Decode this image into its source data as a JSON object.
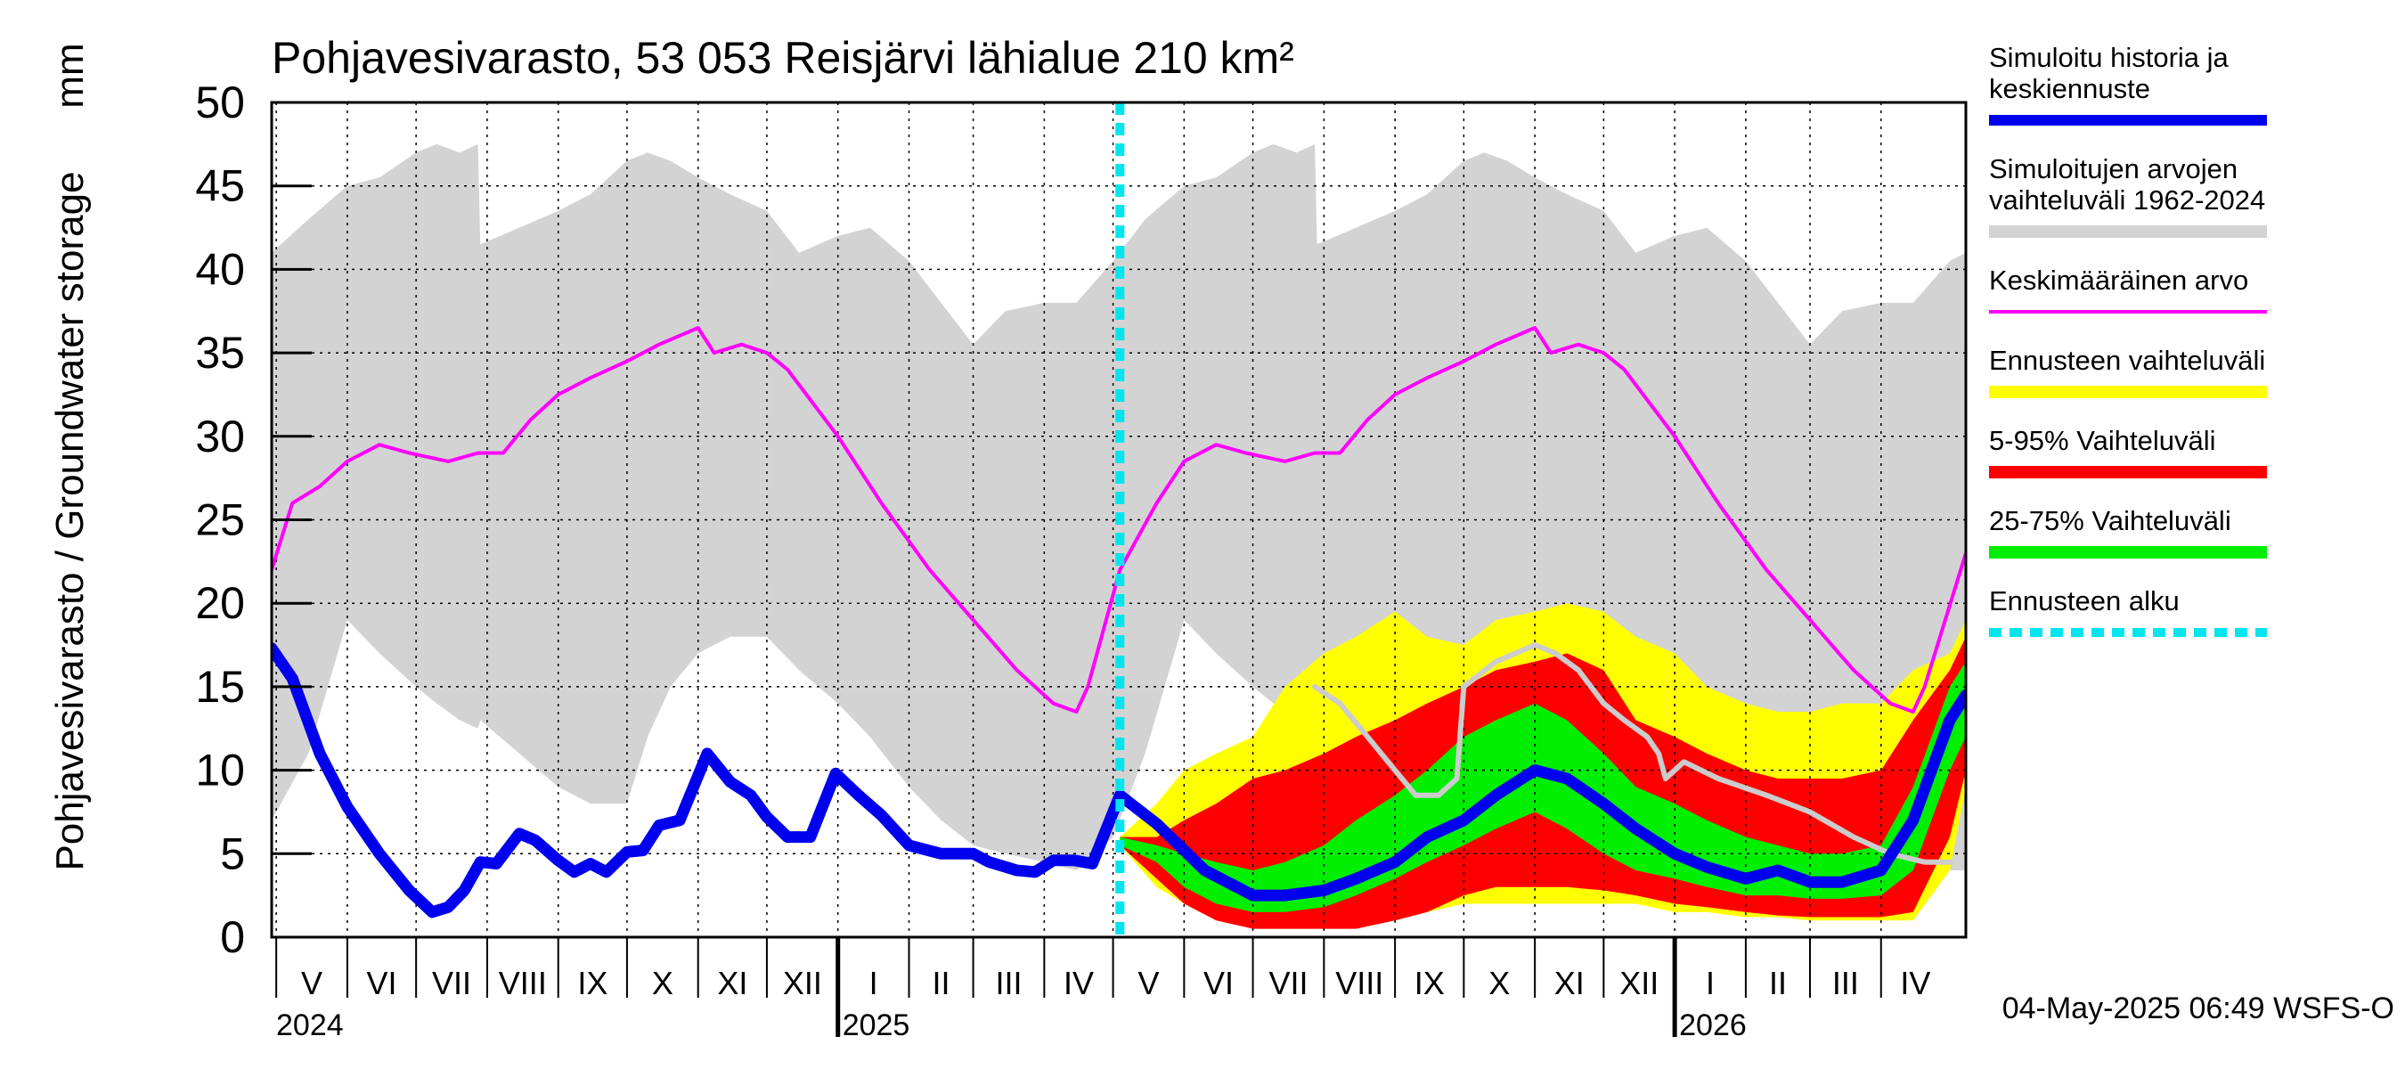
{
  "chart_data": {
    "type": "area",
    "title": "Pohjavesivarasto, 53 053 Reisjärvi lähialue 210 km²",
    "ylabel": "Pohjavesivarasto / Groundwater storage",
    "yunit": "mm",
    "ylim": [
      0,
      50
    ],
    "yticks": [
      "0",
      "5",
      "10",
      "15",
      "20",
      "25",
      "30",
      "35",
      "40",
      "45",
      "50"
    ],
    "xlim": [
      "2024-04-29",
      "2026-05-08"
    ],
    "months": [
      {
        "label": "V",
        "start": "2024-05-01",
        "end": "2024-06-01"
      },
      {
        "label": "VI",
        "start": "2024-06-01",
        "end": "2024-07-01"
      },
      {
        "label": "VII",
        "start": "2024-07-01",
        "end": "2024-08-01"
      },
      {
        "label": "VIII",
        "start": "2024-08-01",
        "end": "2024-09-01"
      },
      {
        "label": "IX",
        "start": "2024-09-01",
        "end": "2024-10-01"
      },
      {
        "label": "X",
        "start": "2024-10-01",
        "end": "2024-11-01"
      },
      {
        "label": "XI",
        "start": "2024-11-01",
        "end": "2024-12-01"
      },
      {
        "label": "XII",
        "start": "2024-12-01",
        "end": "2025-01-01"
      },
      {
        "label": "I",
        "start": "2025-01-01",
        "end": "2025-02-01"
      },
      {
        "label": "II",
        "start": "2025-02-01",
        "end": "2025-03-01"
      },
      {
        "label": "III",
        "start": "2025-03-01",
        "end": "2025-04-01"
      },
      {
        "label": "IV",
        "start": "2025-04-01",
        "end": "2025-05-01"
      },
      {
        "label": "V",
        "start": "2025-05-01",
        "end": "2025-06-01"
      },
      {
        "label": "VI",
        "start": "2025-06-01",
        "end": "2025-07-01"
      },
      {
        "label": "VII",
        "start": "2025-07-01",
        "end": "2025-08-01"
      },
      {
        "label": "VIII",
        "start": "2025-08-01",
        "end": "2025-09-01"
      },
      {
        "label": "IX",
        "start": "2025-09-01",
        "end": "2025-10-01"
      },
      {
        "label": "X",
        "start": "2025-10-01",
        "end": "2025-11-01"
      },
      {
        "label": "XI",
        "start": "2025-11-01",
        "end": "2025-12-01"
      },
      {
        "label": "XII",
        "start": "2025-12-01",
        "end": "2026-01-01"
      },
      {
        "label": "I",
        "start": "2026-01-01",
        "end": "2026-02-01"
      },
      {
        "label": "II",
        "start": "2026-02-01",
        "end": "2026-03-01"
      },
      {
        "label": "III",
        "start": "2026-03-01",
        "end": "2026-04-01"
      },
      {
        "label": "IV",
        "start": "2026-04-01",
        "end": "2026-05-01"
      }
    ],
    "years": [
      {
        "label": "2024",
        "at": "2024-04-29"
      },
      {
        "label": "2025",
        "at": "2025-01-01"
      },
      {
        "label": "2026",
        "at": "2026-01-01"
      }
    ],
    "forecast_start": "2025-05-04",
    "timestamp": "04-May-2025 06:49 WSFS-O",
    "grid": true,
    "legend_position": "right",
    "series": [
      {
        "name": "Simuloitu historia ja keskiennuste",
        "kind": "line",
        "color": "#0000ee",
        "x": [
          "2024-04-29",
          "2024-05-08",
          "2024-05-20",
          "2024-06-01",
          "2024-06-15",
          "2024-06-28",
          "2024-07-08",
          "2024-07-15",
          "2024-07-22",
          "2024-07-29",
          "2024-08-05",
          "2024-08-15",
          "2024-08-22",
          "2024-09-01",
          "2024-09-08",
          "2024-09-15",
          "2024-09-22",
          "2024-10-01",
          "2024-10-08",
          "2024-10-15",
          "2024-10-24",
          "2024-11-05",
          "2024-11-15",
          "2024-11-24",
          "2024-12-01",
          "2024-12-10",
          "2024-12-20",
          "2024-12-31",
          "2025-01-10",
          "2025-01-20",
          "2025-02-01",
          "2025-02-15",
          "2025-03-01",
          "2025-03-08",
          "2025-03-20",
          "2025-03-28",
          "2025-04-05",
          "2025-04-14",
          "2025-04-22",
          "2025-05-04",
          "2025-05-20",
          "2025-06-10",
          "2025-07-01",
          "2025-07-15",
          "2025-08-01",
          "2025-08-15",
          "2025-09-01",
          "2025-09-15",
          "2025-10-01",
          "2025-10-15",
          "2025-11-01",
          "2025-11-15",
          "2025-12-01",
          "2025-12-15",
          "2026-01-01",
          "2026-01-15",
          "2026-02-01",
          "2026-02-15",
          "2026-03-01",
          "2026-03-15",
          "2026-04-01",
          "2026-04-15",
          "2026-05-01",
          "2026-05-08"
        ],
        "y": [
          17.3,
          15.5,
          11,
          7.8,
          5,
          2.8,
          1.5,
          1.8,
          2.8,
          4.5,
          4.4,
          6.2,
          5.8,
          4.6,
          3.9,
          4.4,
          3.9,
          5.1,
          5.2,
          6.7,
          7,
          11,
          9.3,
          8.5,
          7.2,
          6,
          6,
          9.8,
          8.5,
          7.3,
          5.5,
          5,
          5,
          4.5,
          4,
          3.9,
          4.6,
          4.6,
          4.4,
          8.5,
          6.8,
          4,
          2.5,
          2.5,
          2.8,
          3.5,
          4.5,
          6,
          7,
          8.5,
          10,
          9.5,
          8,
          6.5,
          5,
          4.2,
          3.5,
          4,
          3.3,
          3.3,
          4,
          7,
          13,
          14.5
        ]
      },
      {
        "name": "Simuloitujen arvojen vaihteluväli 1962-2024",
        "kind": "band",
        "color": "#d3d3d3",
        "x": [
          "2024-04-29",
          "2024-05-15",
          "2024-06-01",
          "2024-06-15",
          "2024-07-01",
          "2024-07-10",
          "2024-07-20",
          "2024-07-28",
          "2024-07-29",
          "2024-08-15",
          "2024-09-01",
          "2024-09-15",
          "2024-10-01",
          "2024-10-10",
          "2024-10-20",
          "2024-11-01",
          "2024-11-15",
          "2024-12-01",
          "2024-12-15",
          "2025-01-01",
          "2025-01-15",
          "2025-02-01",
          "2025-02-15",
          "2025-03-01",
          "2025-03-15",
          "2025-04-01",
          "2025-04-15",
          "2025-05-01",
          "2025-05-15",
          "2025-06-01",
          "2025-06-15",
          "2025-07-01",
          "2025-07-10",
          "2025-07-20",
          "2025-07-28",
          "2025-07-29",
          "2025-08-15",
          "2025-09-01",
          "2025-09-15",
          "2025-10-01",
          "2025-10-10",
          "2025-10-20",
          "2025-11-01",
          "2025-11-15",
          "2025-12-01",
          "2025-12-15",
          "2026-01-01",
          "2026-01-15",
          "2026-02-01",
          "2026-02-15",
          "2026-03-01",
          "2026-03-15",
          "2026-04-01",
          "2026-04-15",
          "2026-05-01",
          "2026-05-08"
        ],
        "lo": [
          7,
          11,
          19,
          17,
          15,
          14,
          13,
          12.5,
          13,
          11,
          9,
          8,
          8,
          12,
          15,
          17,
          18,
          18,
          16,
          14,
          12,
          9,
          7,
          5.5,
          5,
          4.5,
          4,
          6,
          11,
          19,
          17,
          15,
          14,
          13,
          12.5,
          13,
          11,
          9,
          8,
          8,
          12,
          15,
          17,
          18,
          18,
          16,
          14,
          12,
          9,
          7,
          5.5,
          5,
          4.5,
          4,
          4,
          4
        ],
        "hi": [
          41,
          43,
          45,
          45.5,
          47,
          47.5,
          47,
          47.5,
          41.5,
          42.5,
          43.5,
          44.5,
          46.5,
          47,
          46.5,
          45.5,
          44.5,
          43.5,
          41,
          42,
          42.5,
          40.5,
          38,
          35.5,
          37.5,
          38,
          38,
          40.5,
          43,
          45,
          45.5,
          47,
          47.5,
          47,
          47.5,
          41.5,
          42.5,
          43.5,
          44.5,
          46.5,
          47,
          46.5,
          45.5,
          44.5,
          43.5,
          41,
          42,
          42.5,
          40.5,
          38,
          35.5,
          37.5,
          38,
          38,
          40.5,
          41
        ]
      },
      {
        "name": "Keskimääräinen arvo",
        "kind": "line",
        "color": "#ff00ff",
        "x": [
          "2024-04-29",
          "2024-05-08",
          "2024-05-20",
          "2024-06-01",
          "2024-06-15",
          "2024-06-28",
          "2024-07-15",
          "2024-07-28",
          "2024-08-08",
          "2024-08-20",
          "2024-09-01",
          "2024-09-15",
          "2024-10-01",
          "2024-10-15",
          "2024-11-01",
          "2024-11-08",
          "2024-11-20",
          "2024-12-01",
          "2024-12-10",
          "2025-01-01",
          "2025-01-20",
          "2025-02-10",
          "2025-03-01",
          "2025-03-20",
          "2025-04-05",
          "2025-04-15",
          "2025-04-20",
          "2025-05-04",
          "2025-05-20",
          "2025-06-01",
          "2025-06-15",
          "2025-06-28",
          "2025-07-15",
          "2025-07-28",
          "2025-08-08",
          "2025-08-20",
          "2025-09-01",
          "2025-09-15",
          "2025-10-01",
          "2025-10-15",
          "2025-11-01",
          "2025-11-08",
          "2025-11-20",
          "2025-12-01",
          "2025-12-10",
          "2026-01-01",
          "2026-01-20",
          "2026-02-10",
          "2026-03-01",
          "2026-03-20",
          "2026-04-05",
          "2026-04-15",
          "2026-04-20",
          "2026-05-08"
        ],
        "y": [
          22,
          26,
          27,
          28.5,
          29.5,
          29,
          28.5,
          29,
          29,
          31,
          32.5,
          33.5,
          34.5,
          35.5,
          36.5,
          35,
          35.5,
          35,
          34,
          30,
          26,
          22,
          19,
          16,
          14,
          13.5,
          15,
          22,
          26,
          28.5,
          29.5,
          29,
          28.5,
          29,
          29,
          31,
          32.5,
          33.5,
          34.5,
          35.5,
          36.5,
          35,
          35.5,
          35,
          34,
          30,
          26,
          22,
          19,
          16,
          14,
          13.5,
          15,
          23
        ]
      },
      {
        "name": "Ennusteen vaihteluväli",
        "kind": "band",
        "color": "#ffff00",
        "x": [
          "2025-05-04",
          "2025-05-20",
          "2025-06-01",
          "2025-06-15",
          "2025-07-01",
          "2025-07-15",
          "2025-08-01",
          "2025-08-15",
          "2025-09-01",
          "2025-09-15",
          "2025-10-01",
          "2025-10-15",
          "2025-11-01",
          "2025-11-15",
          "2025-12-01",
          "2025-12-15",
          "2026-01-01",
          "2026-01-15",
          "2026-02-01",
          "2026-02-15",
          "2026-03-01",
          "2026-03-15",
          "2026-04-01",
          "2026-04-15",
          "2026-05-01",
          "2026-05-08"
        ],
        "lo": [
          5.5,
          3,
          2,
          1.5,
          1,
          1,
          1,
          1,
          1,
          1.5,
          2,
          2,
          2,
          2,
          2,
          2,
          1.5,
          1.5,
          1.2,
          1.2,
          1,
          1,
          1,
          1,
          4,
          9
        ],
        "hi": [
          6,
          8,
          10,
          11,
          12,
          15,
          17,
          18,
          19.5,
          18,
          17.5,
          19,
          19.5,
          20,
          19.5,
          18,
          17,
          15,
          14,
          13.5,
          13.5,
          14,
          14,
          16,
          17,
          19
        ]
      },
      {
        "name": "5-95% Vaihteluväli",
        "kind": "band",
        "color": "#ff0000",
        "x": [
          "2025-05-04",
          "2025-05-20",
          "2025-06-01",
          "2025-06-15",
          "2025-07-01",
          "2025-07-15",
          "2025-08-01",
          "2025-08-15",
          "2025-09-01",
          "2025-09-15",
          "2025-10-01",
          "2025-10-15",
          "2025-11-01",
          "2025-11-15",
          "2025-12-01",
          "2025-12-15",
          "2026-01-01",
          "2026-01-15",
          "2026-02-01",
          "2026-02-15",
          "2026-03-01",
          "2026-03-15",
          "2026-04-01",
          "2026-04-15",
          "2026-05-01",
          "2026-05-08"
        ],
        "lo": [
          5.5,
          3.5,
          2,
          1,
          0.5,
          0.5,
          0.5,
          0.5,
          1,
          1.5,
          2.5,
          3,
          3,
          3,
          2.8,
          2.5,
          2,
          1.8,
          1.5,
          1.3,
          1.2,
          1.2,
          1.2,
          1.5,
          6,
          10
        ],
        "hi": [
          6,
          6,
          7,
          8,
          9.5,
          10,
          11,
          12,
          13,
          14,
          15,
          16,
          16.5,
          17,
          16,
          13,
          12,
          11,
          10,
          9.5,
          9.5,
          9.5,
          10,
          13,
          16,
          18
        ]
      },
      {
        "name": "25-75% Vaihteluväli",
        "kind": "band",
        "color": "#00ee00",
        "x": [
          "2025-05-04",
          "2025-05-20",
          "2025-06-01",
          "2025-06-15",
          "2025-07-01",
          "2025-07-15",
          "2025-08-01",
          "2025-08-15",
          "2025-09-01",
          "2025-09-15",
          "2025-10-01",
          "2025-10-15",
          "2025-11-01",
          "2025-11-15",
          "2025-12-01",
          "2025-12-15",
          "2026-01-01",
          "2026-01-15",
          "2026-02-01",
          "2026-02-15",
          "2026-03-01",
          "2026-03-15",
          "2026-04-01",
          "2026-04-15",
          "2026-05-01",
          "2026-05-08"
        ],
        "lo": [
          5.5,
          4.5,
          3,
          2,
          1.5,
          1.5,
          1.8,
          2.5,
          3.5,
          4.5,
          5.5,
          6.5,
          7.5,
          6.5,
          5,
          4,
          3.5,
          3,
          2.5,
          2.5,
          2.3,
          2.3,
          2.5,
          4,
          10,
          12
        ],
        "hi": [
          6,
          5.5,
          5,
          4.5,
          4,
          4.5,
          5.5,
          7,
          8.5,
          10,
          12,
          13,
          14,
          13,
          11,
          9,
          8,
          7,
          6,
          5.5,
          5,
          5,
          5.5,
          9,
          15,
          16.5
        ]
      },
      {
        "name": "Ennusteen alku",
        "kind": "vline",
        "color": "#00e5ee",
        "x": "2025-05-04"
      },
      {
        "kind": "line",
        "color": "#cccccc",
        "x": [
          "2025-07-28",
          "2025-08-08",
          "2025-08-20",
          "2025-09-01",
          "2025-09-10",
          "2025-09-20",
          "2025-09-28",
          "2025-10-01",
          "2025-10-15",
          "2025-11-01",
          "2025-11-10",
          "2025-11-20",
          "2025-12-01",
          "2025-12-10",
          "2025-12-20",
          "2025-12-25",
          "2025-12-28",
          "2026-01-05",
          "2026-01-20",
          "2026-02-10",
          "2026-03-01",
          "2026-03-20",
          "2026-04-05",
          "2026-04-20",
          "2026-05-01"
        ],
        "y": [
          15,
          14,
          12,
          10,
          8.5,
          8.5,
          9.5,
          15,
          16.5,
          17.5,
          17,
          16,
          14,
          13,
          12,
          11,
          9.5,
          10.5,
          9.5,
          8.5,
          7.5,
          6,
          5,
          4.5,
          4.5
        ]
      }
    ]
  }
}
